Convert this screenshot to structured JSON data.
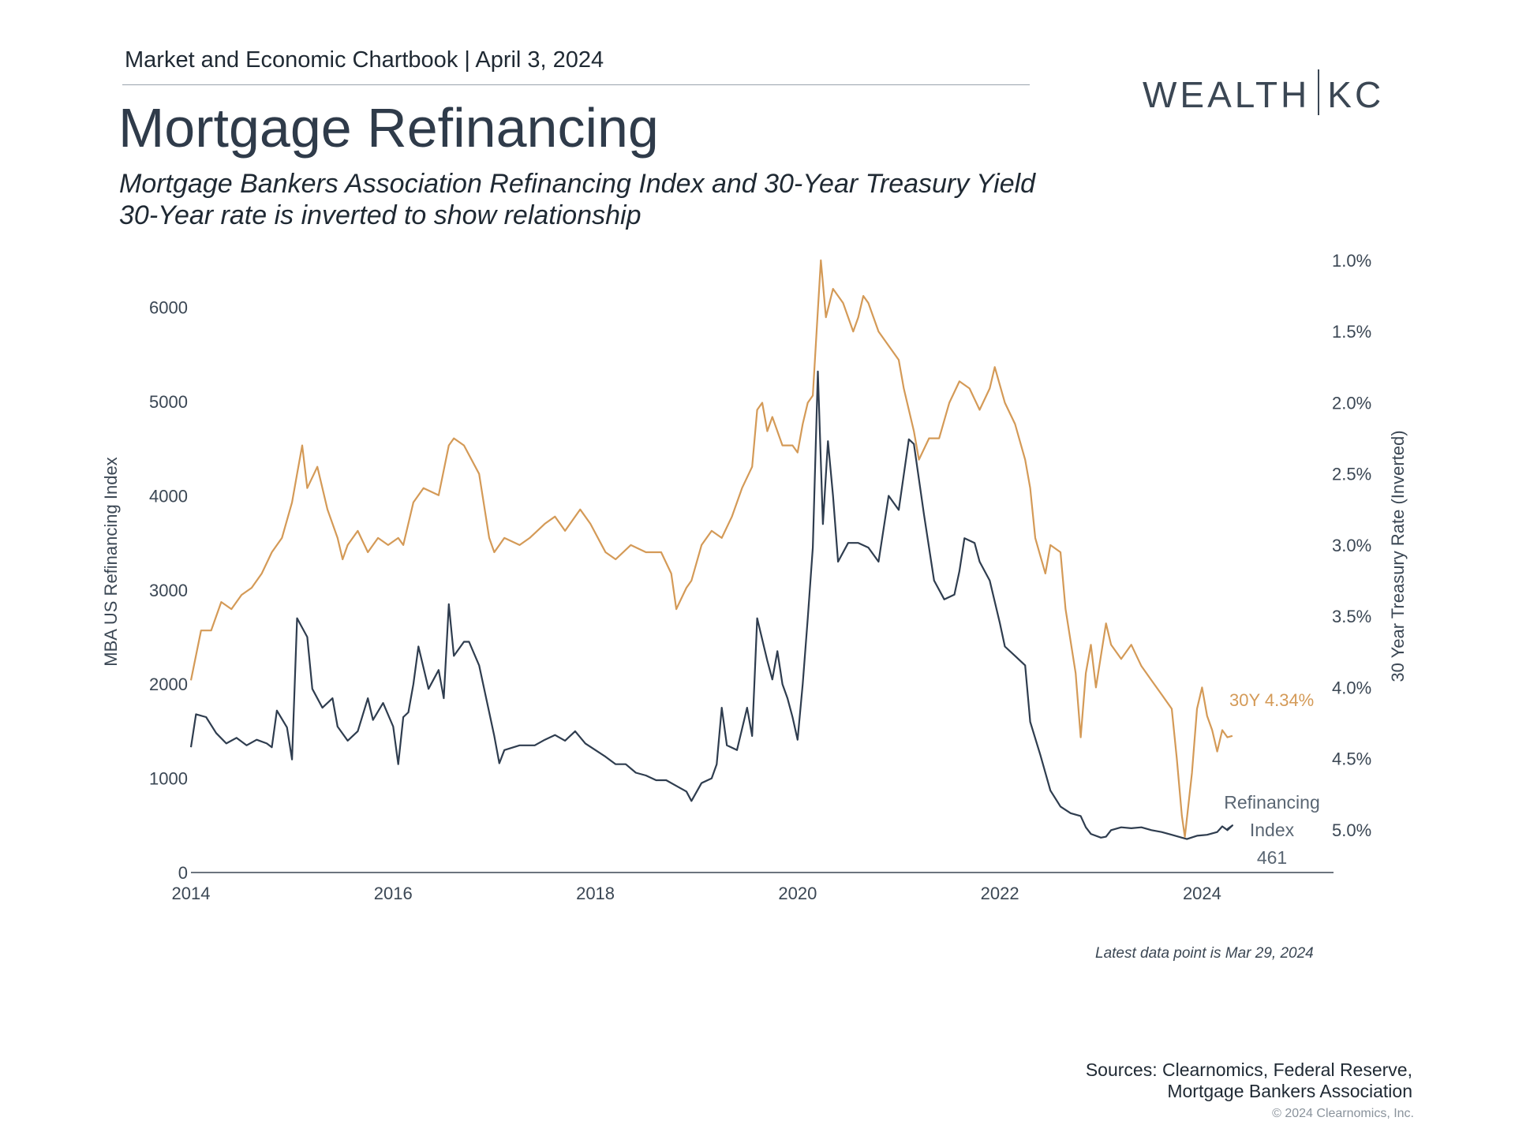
{
  "header": {
    "chartbook": "Market and Economic Chartbook | April 3, 2024",
    "logo_left": "WEALTH",
    "logo_right": "KC"
  },
  "title": "Mortgage Refinancing",
  "subtitle_line1": "Mortgage Bankers Association Refinancing Index and 30-Year Treasury Yield",
  "subtitle_line2": "30-Year rate is inverted to show relationship",
  "chart_data": {
    "type": "line",
    "x_ticks": [
      "2014",
      "2016",
      "2018",
      "2020",
      "2022",
      "2024"
    ],
    "xlim": [
      2014.0,
      2025.3
    ],
    "y_left": {
      "label": "MBA US Refinancing Index",
      "ticks": [
        "0",
        "1000",
        "2000",
        "3000",
        "4000",
        "5000",
        "6000"
      ],
      "ylim": [
        0,
        6500
      ]
    },
    "y_right": {
      "label": "30 Year Treasury Rate (Inverted)",
      "ticks": [
        "1.0%",
        "1.5%",
        "2.0%",
        "2.5%",
        "3.0%",
        "3.5%",
        "4.0%",
        "4.5%",
        "5.0%"
      ],
      "ylim_inverted": [
        5.3,
        1.0
      ]
    },
    "series": [
      {
        "name": "Refinancing Index",
        "axis": "left",
        "color": "#2f3d4f",
        "points": [
          [
            2014.0,
            1330
          ],
          [
            2014.05,
            1680
          ],
          [
            2014.15,
            1650
          ],
          [
            2014.25,
            1480
          ],
          [
            2014.35,
            1370
          ],
          [
            2014.45,
            1430
          ],
          [
            2014.55,
            1350
          ],
          [
            2014.65,
            1410
          ],
          [
            2014.75,
            1370
          ],
          [
            2014.8,
            1330
          ],
          [
            2014.85,
            1720
          ],
          [
            2014.95,
            1540
          ],
          [
            2015.0,
            1200
          ],
          [
            2015.05,
            2700
          ],
          [
            2015.15,
            2500
          ],
          [
            2015.2,
            1950
          ],
          [
            2015.3,
            1750
          ],
          [
            2015.4,
            1850
          ],
          [
            2015.45,
            1550
          ],
          [
            2015.55,
            1400
          ],
          [
            2015.65,
            1500
          ],
          [
            2015.75,
            1850
          ],
          [
            2015.8,
            1620
          ],
          [
            2015.9,
            1800
          ],
          [
            2016.0,
            1550
          ],
          [
            2016.05,
            1150
          ],
          [
            2016.1,
            1650
          ],
          [
            2016.15,
            1700
          ],
          [
            2016.2,
            2000
          ],
          [
            2016.25,
            2400
          ],
          [
            2016.35,
            1950
          ],
          [
            2016.45,
            2150
          ],
          [
            2016.5,
            1850
          ],
          [
            2016.55,
            2850
          ],
          [
            2016.6,
            2300
          ],
          [
            2016.7,
            2450
          ],
          [
            2016.75,
            2450
          ],
          [
            2016.85,
            2200
          ],
          [
            2016.95,
            1700
          ],
          [
            2017.0,
            1450
          ],
          [
            2017.05,
            1160
          ],
          [
            2017.1,
            1300
          ],
          [
            2017.25,
            1350
          ],
          [
            2017.4,
            1350
          ],
          [
            2017.5,
            1410
          ],
          [
            2017.6,
            1460
          ],
          [
            2017.7,
            1400
          ],
          [
            2017.8,
            1500
          ],
          [
            2017.9,
            1370
          ],
          [
            2018.0,
            1300
          ],
          [
            2018.1,
            1230
          ],
          [
            2018.2,
            1150
          ],
          [
            2018.3,
            1150
          ],
          [
            2018.4,
            1060
          ],
          [
            2018.5,
            1030
          ],
          [
            2018.6,
            980
          ],
          [
            2018.7,
            980
          ],
          [
            2018.8,
            920
          ],
          [
            2018.9,
            860
          ],
          [
            2018.95,
            760
          ],
          [
            2019.05,
            950
          ],
          [
            2019.15,
            1000
          ],
          [
            2019.2,
            1150
          ],
          [
            2019.25,
            1750
          ],
          [
            2019.3,
            1350
          ],
          [
            2019.4,
            1300
          ],
          [
            2019.5,
            1750
          ],
          [
            2019.55,
            1450
          ],
          [
            2019.6,
            2700
          ],
          [
            2019.7,
            2250
          ],
          [
            2019.75,
            2050
          ],
          [
            2019.8,
            2350
          ],
          [
            2019.85,
            2000
          ],
          [
            2019.9,
            1850
          ],
          [
            2019.95,
            1650
          ],
          [
            2020.0,
            1410
          ],
          [
            2020.05,
            2000
          ],
          [
            2020.1,
            2700
          ],
          [
            2020.15,
            3450
          ],
          [
            2020.2,
            5320
          ],
          [
            2020.25,
            3700
          ],
          [
            2020.3,
            4580
          ],
          [
            2020.35,
            4000
          ],
          [
            2020.4,
            3300
          ],
          [
            2020.5,
            3500
          ],
          [
            2020.6,
            3500
          ],
          [
            2020.7,
            3450
          ],
          [
            2020.8,
            3300
          ],
          [
            2020.9,
            4000
          ],
          [
            2021.0,
            3850
          ],
          [
            2021.1,
            4600
          ],
          [
            2021.15,
            4550
          ],
          [
            2021.25,
            3800
          ],
          [
            2021.35,
            3100
          ],
          [
            2021.45,
            2900
          ],
          [
            2021.55,
            2950
          ],
          [
            2021.6,
            3200
          ],
          [
            2021.65,
            3550
          ],
          [
            2021.75,
            3500
          ],
          [
            2021.8,
            3300
          ],
          [
            2021.9,
            3100
          ],
          [
            2022.0,
            2650
          ],
          [
            2022.05,
            2400
          ],
          [
            2022.15,
            2300
          ],
          [
            2022.25,
            2200
          ],
          [
            2022.3,
            1600
          ],
          [
            2022.4,
            1250
          ],
          [
            2022.5,
            870
          ],
          [
            2022.6,
            700
          ],
          [
            2022.7,
            630
          ],
          [
            2022.8,
            600
          ],
          [
            2022.85,
            480
          ],
          [
            2022.9,
            410
          ],
          [
            2023.0,
            370
          ],
          [
            2023.05,
            380
          ],
          [
            2023.1,
            450
          ],
          [
            2023.2,
            480
          ],
          [
            2023.3,
            470
          ],
          [
            2023.4,
            480
          ],
          [
            2023.5,
            450
          ],
          [
            2023.6,
            430
          ],
          [
            2023.7,
            400
          ],
          [
            2023.8,
            370
          ],
          [
            2023.85,
            355
          ],
          [
            2023.95,
            390
          ],
          [
            2024.05,
            400
          ],
          [
            2024.15,
            430
          ],
          [
            2024.2,
            490
          ],
          [
            2024.25,
            450
          ],
          [
            2024.3,
            500
          ],
          [
            2024.25,
            461
          ]
        ]
      },
      {
        "name": "30Y",
        "axis": "right",
        "color": "#d49a57",
        "points": [
          [
            2014.0,
            3.95
          ],
          [
            2014.1,
            3.6
          ],
          [
            2014.2,
            3.6
          ],
          [
            2014.3,
            3.4
          ],
          [
            2014.4,
            3.45
          ],
          [
            2014.5,
            3.35
          ],
          [
            2014.6,
            3.3
          ],
          [
            2014.7,
            3.2
          ],
          [
            2014.8,
            3.05
          ],
          [
            2014.9,
            2.95
          ],
          [
            2015.0,
            2.7
          ],
          [
            2015.05,
            2.5
          ],
          [
            2015.1,
            2.3
          ],
          [
            2015.15,
            2.6
          ],
          [
            2015.25,
            2.45
          ],
          [
            2015.35,
            2.75
          ],
          [
            2015.45,
            2.95
          ],
          [
            2015.5,
            3.1
          ],
          [
            2015.55,
            3.0
          ],
          [
            2015.65,
            2.9
          ],
          [
            2015.75,
            3.05
          ],
          [
            2015.85,
            2.95
          ],
          [
            2015.95,
            3.0
          ],
          [
            2016.05,
            2.95
          ],
          [
            2016.1,
            3.0
          ],
          [
            2016.2,
            2.7
          ],
          [
            2016.3,
            2.6
          ],
          [
            2016.45,
            2.65
          ],
          [
            2016.55,
            2.3
          ],
          [
            2016.6,
            2.25
          ],
          [
            2016.7,
            2.3
          ],
          [
            2016.85,
            2.5
          ],
          [
            2016.95,
            2.95
          ],
          [
            2017.0,
            3.05
          ],
          [
            2017.1,
            2.95
          ],
          [
            2017.25,
            3.0
          ],
          [
            2017.35,
            2.95
          ],
          [
            2017.5,
            2.85
          ],
          [
            2017.6,
            2.8
          ],
          [
            2017.7,
            2.9
          ],
          [
            2017.85,
            2.75
          ],
          [
            2017.95,
            2.85
          ],
          [
            2018.1,
            3.05
          ],
          [
            2018.2,
            3.1
          ],
          [
            2018.35,
            3.0
          ],
          [
            2018.5,
            3.05
          ],
          [
            2018.65,
            3.05
          ],
          [
            2018.75,
            3.2
          ],
          [
            2018.8,
            3.45
          ],
          [
            2018.9,
            3.3
          ],
          [
            2018.95,
            3.25
          ],
          [
            2019.05,
            3.0
          ],
          [
            2019.15,
            2.9
          ],
          [
            2019.25,
            2.95
          ],
          [
            2019.35,
            2.8
          ],
          [
            2019.45,
            2.6
          ],
          [
            2019.55,
            2.45
          ],
          [
            2019.6,
            2.05
          ],
          [
            2019.65,
            2.0
          ],
          [
            2019.7,
            2.2
          ],
          [
            2019.75,
            2.1
          ],
          [
            2019.85,
            2.3
          ],
          [
            2019.95,
            2.3
          ],
          [
            2020.0,
            2.35
          ],
          [
            2020.05,
            2.15
          ],
          [
            2020.1,
            2.0
          ],
          [
            2020.15,
            1.95
          ],
          [
            2020.2,
            1.35
          ],
          [
            2020.23,
            1.0
          ],
          [
            2020.28,
            1.4
          ],
          [
            2020.35,
            1.2
          ],
          [
            2020.45,
            1.3
          ],
          [
            2020.55,
            1.5
          ],
          [
            2020.6,
            1.4
          ],
          [
            2020.65,
            1.25
          ],
          [
            2020.7,
            1.3
          ],
          [
            2020.8,
            1.5
          ],
          [
            2020.9,
            1.6
          ],
          [
            2021.0,
            1.7
          ],
          [
            2021.05,
            1.9
          ],
          [
            2021.15,
            2.2
          ],
          [
            2021.2,
            2.4
          ],
          [
            2021.3,
            2.25
          ],
          [
            2021.4,
            2.25
          ],
          [
            2021.5,
            2.0
          ],
          [
            2021.6,
            1.85
          ],
          [
            2021.7,
            1.9
          ],
          [
            2021.8,
            2.05
          ],
          [
            2021.9,
            1.9
          ],
          [
            2021.95,
            1.75
          ],
          [
            2022.05,
            2.0
          ],
          [
            2022.15,
            2.15
          ],
          [
            2022.25,
            2.4
          ],
          [
            2022.3,
            2.6
          ],
          [
            2022.35,
            2.95
          ],
          [
            2022.45,
            3.2
          ],
          [
            2022.5,
            3.0
          ],
          [
            2022.6,
            3.05
          ],
          [
            2022.65,
            3.45
          ],
          [
            2022.75,
            3.9
          ],
          [
            2022.8,
            4.35
          ],
          [
            2022.85,
            3.9
          ],
          [
            2022.9,
            3.7
          ],
          [
            2022.95,
            4.0
          ],
          [
            2023.05,
            3.55
          ],
          [
            2023.1,
            3.7
          ],
          [
            2023.2,
            3.8
          ],
          [
            2023.3,
            3.7
          ],
          [
            2023.4,
            3.85
          ],
          [
            2023.5,
            3.95
          ],
          [
            2023.6,
            4.05
          ],
          [
            2023.7,
            4.15
          ],
          [
            2023.75,
            4.5
          ],
          [
            2023.8,
            4.9
          ],
          [
            2023.83,
            5.05
          ],
          [
            2023.9,
            4.6
          ],
          [
            2023.95,
            4.15
          ],
          [
            2024.0,
            4.0
          ],
          [
            2024.05,
            4.2
          ],
          [
            2024.1,
            4.3
          ],
          [
            2024.15,
            4.45
          ],
          [
            2024.2,
            4.3
          ],
          [
            2024.25,
            4.35
          ],
          [
            2024.3,
            4.34
          ]
        ]
      }
    ],
    "annotations": {
      "rate_label": "30Y 4.34%",
      "index_label_1": "Refinancing",
      "index_label_2": "Index",
      "index_label_3": "461"
    }
  },
  "latest_note": "Latest data point is Mar 29, 2024",
  "sources_line1": "Sources: Clearnomics, Federal Reserve,",
  "sources_line2": "Mortgage Bankers Association",
  "copyright": "© 2024 Clearnomics, Inc."
}
